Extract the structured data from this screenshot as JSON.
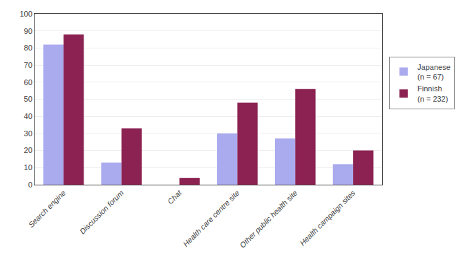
{
  "chart_data": {
    "type": "bar",
    "categories": [
      "Search engine",
      "Discussion forum",
      "Chat",
      "Health care centre site",
      "Other public health site",
      "Health campaign sites"
    ],
    "series": [
      {
        "name": "Japanese\n(n = 67)",
        "color": "#aaaaee",
        "values": [
          82,
          13,
          0,
          30,
          27,
          12
        ]
      },
      {
        "name": "Finnish\n(n = 232)",
        "color": "#8b2252",
        "values": [
          88,
          33,
          4,
          48,
          56,
          20
        ]
      }
    ],
    "ylim": [
      0,
      100
    ],
    "yticks": [
      0,
      10,
      20,
      30,
      40,
      50,
      60,
      70,
      80,
      90,
      100
    ],
    "grid": true,
    "legend": "right"
  }
}
